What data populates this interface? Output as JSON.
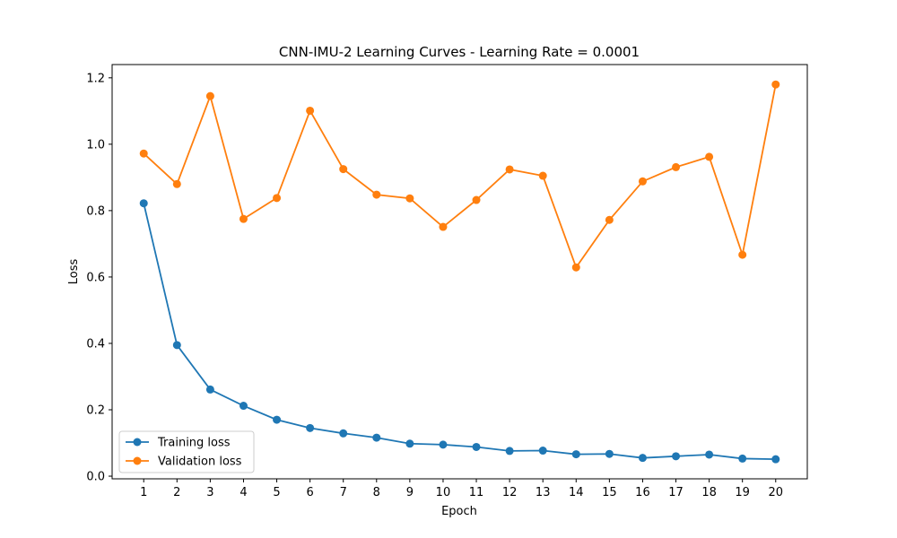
{
  "chart_data": {
    "type": "line",
    "title": "CNN-IMU-2 Learning Curves - Learning Rate = 0.0001",
    "xlabel": "Epoch",
    "ylabel": "Loss",
    "x": [
      1,
      2,
      3,
      4,
      5,
      6,
      7,
      8,
      9,
      10,
      11,
      12,
      13,
      14,
      15,
      16,
      17,
      18,
      19,
      20
    ],
    "xlim": [
      0.05,
      20.95
    ],
    "ylim": [
      -0.008,
      1.24
    ],
    "yticks": [
      0.0,
      0.2,
      0.4,
      0.6,
      0.8,
      1.0,
      1.2
    ],
    "ytick_labels": [
      "0.0",
      "0.2",
      "0.4",
      "0.6",
      "0.8",
      "1.0",
      "1.2"
    ],
    "grid": false,
    "legend_position": "lower-left",
    "series": [
      {
        "name": "Training loss",
        "color": "#1f77b4",
        "marker": "circle",
        "values": [
          0.822,
          0.395,
          0.261,
          0.212,
          0.17,
          0.145,
          0.129,
          0.116,
          0.098,
          0.095,
          0.088,
          0.076,
          0.077,
          0.066,
          0.067,
          0.055,
          0.06,
          0.065,
          0.053,
          0.051
        ]
      },
      {
        "name": "Validation loss",
        "color": "#ff7f0e",
        "marker": "circle",
        "values": [
          0.972,
          0.88,
          1.145,
          0.775,
          0.838,
          1.101,
          0.925,
          0.848,
          0.837,
          0.751,
          0.832,
          0.924,
          0.905,
          0.629,
          0.772,
          0.888,
          0.931,
          0.962,
          0.667,
          1.18
        ]
      }
    ]
  }
}
